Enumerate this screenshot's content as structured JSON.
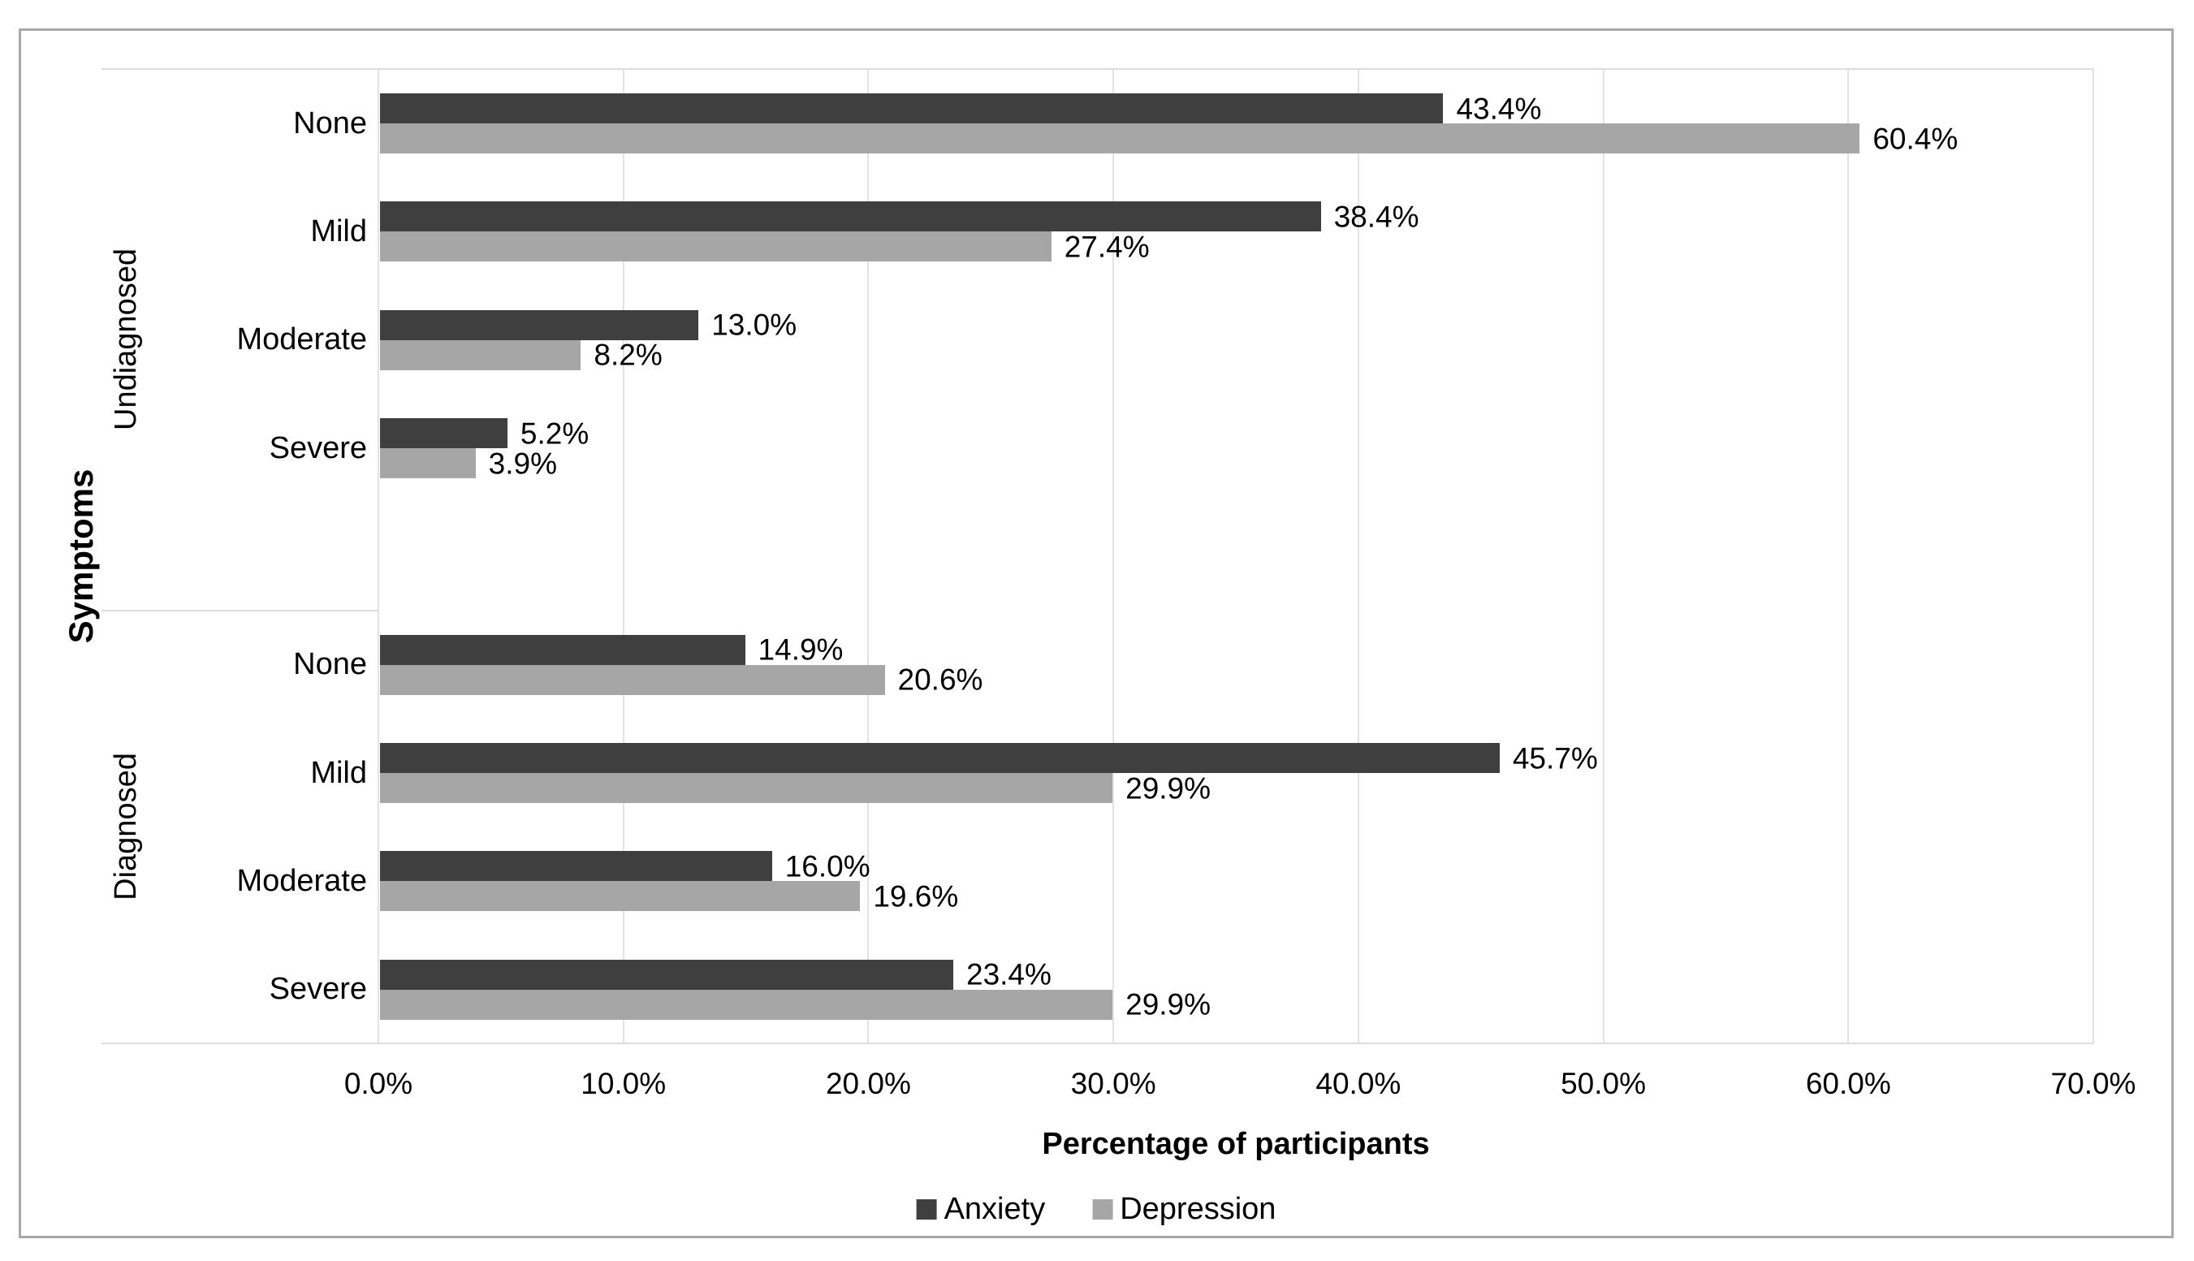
{
  "chart_data": {
    "type": "bar",
    "orientation": "horizontal",
    "title": "",
    "xlabel": "Percentage of participants",
    "ylabel": "Symptoms",
    "xlim": [
      0,
      70
    ],
    "x_tick_values": [
      0,
      10,
      20,
      30,
      40,
      50,
      60,
      70
    ],
    "x_tick_labels": [
      "0.0%",
      "10.0%",
      "20.0%",
      "30.0%",
      "40.0%",
      "50.0%",
      "60.0%",
      "70.0%"
    ],
    "grid": "vertical",
    "legend": [
      "Anxiety",
      "Depression"
    ],
    "legend_position": "bottom",
    "series_colors": [
      "#3f3f3f",
      "#a6a6a6"
    ],
    "groups": [
      {
        "label": "Undiagnosed",
        "categories": [
          "None",
          "Mild",
          "Moderate",
          "Severe"
        ],
        "series": [
          {
            "name": "Anxiety",
            "values": [
              43.4,
              38.4,
              13.0,
              5.2
            ],
            "labels": [
              "43.4%",
              "38.4%",
              "13.0%",
              "5.2%"
            ]
          },
          {
            "name": "Depression",
            "values": [
              60.4,
              27.4,
              8.2,
              3.9
            ],
            "labels": [
              "60.4%",
              "27.4%",
              "8.2%",
              "3.9%"
            ]
          }
        ]
      },
      {
        "label": "Diagnosed",
        "categories": [
          "None",
          "Mild",
          "Moderate",
          "Severe"
        ],
        "series": [
          {
            "name": "Anxiety",
            "values": [
              14.9,
              45.7,
              16.0,
              23.4
            ],
            "labels": [
              "14.9%",
              "45.7%",
              "16.0%",
              "23.4%"
            ]
          },
          {
            "name": "Depression",
            "values": [
              20.6,
              29.9,
              19.6,
              29.9
            ],
            "labels": [
              "20.6%",
              "29.9%",
              "19.6%",
              "29.9%"
            ]
          }
        ]
      }
    ]
  }
}
